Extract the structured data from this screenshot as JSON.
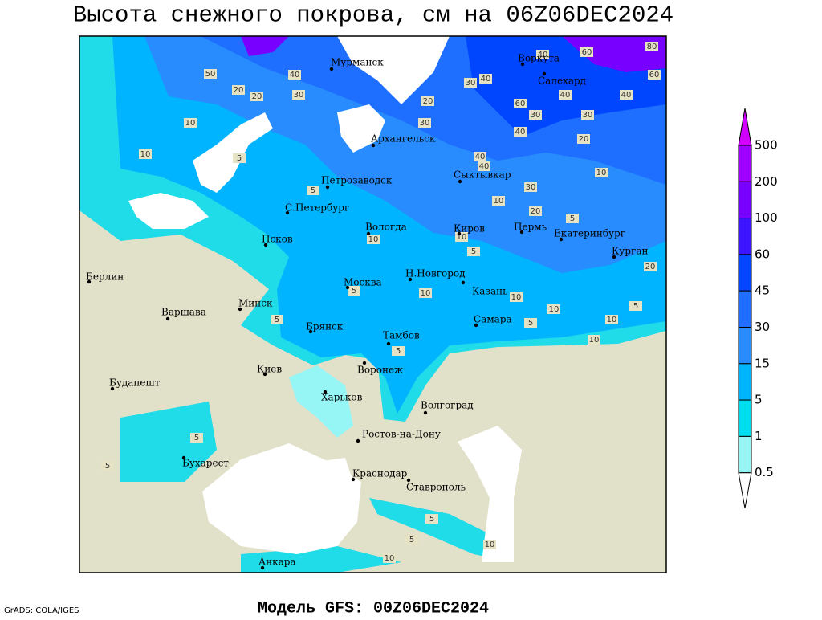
{
  "title": "Высота снежного покрова, см на 06Z06DEC2024",
  "footer": "Модель GFS: 00Z06DEC2024",
  "credit": "GrADS: COLA/IGES",
  "cities": [
    "Мурманск",
    "Воркута",
    "Салехард",
    "Архангельск",
    "Сыктывкар",
    "Петрозаводск",
    "С.Петербург",
    "Вологда",
    "Киров",
    "Пермь",
    "Екатеринбург",
    "Псков",
    "Курган",
    "Берлин",
    "Н.Новгород",
    "Казань",
    "Москва",
    "Минск",
    "Варшава",
    "Самара",
    "Брянск",
    "Тамбов",
    "Киев",
    "Воронеж",
    "Будапешт",
    "Харьков",
    "Волгоград",
    "Ростов-на-Дону",
    "Бухарест",
    "Краснодар",
    "Ставрополь",
    "Анкара"
  ],
  "contour_labels": [
    50,
    40,
    20,
    20,
    30,
    10,
    10,
    5,
    20,
    30,
    40,
    30,
    40,
    60,
    80,
    60,
    40,
    40,
    60,
    30,
    30,
    40,
    20,
    40,
    40,
    10,
    30,
    10,
    20,
    5,
    10,
    10,
    5,
    20,
    10,
    10,
    10,
    5,
    5,
    5,
    5,
    5,
    10,
    10,
    5,
    5,
    5,
    5,
    10,
    10,
    5
  ],
  "legend": {
    "levels": [
      500,
      200,
      100,
      60,
      45,
      30,
      15,
      5,
      1,
      0.5
    ],
    "colors": [
      "#d200ff",
      "#a000ff",
      "#7800ff",
      "#3c14ff",
      "#0046ff",
      "#1e6eff",
      "#288cff",
      "#00b4ff",
      "#00dcf0",
      "#96f5f5",
      "#ffffff"
    ]
  }
}
